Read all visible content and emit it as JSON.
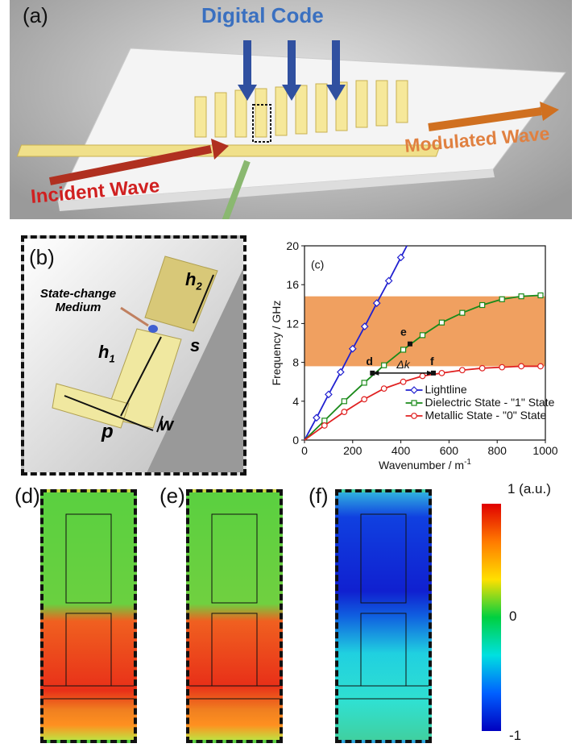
{
  "panels": {
    "a": {
      "label": "(a)",
      "digital_code": "Digital Code",
      "incident_wave": "Incident Wave",
      "modulated_wave": "Modulated Wave"
    },
    "b": {
      "label": "(b)",
      "medium": "State-change Medium",
      "h1": "h",
      "h1_sub": "1",
      "h2": "h",
      "h2_sub": "2",
      "s": "s",
      "p": "p",
      "w": "w"
    },
    "d": {
      "label": "(d)"
    },
    "e": {
      "label": "(e)"
    },
    "f": {
      "label": "(f)"
    }
  },
  "colorbar": {
    "max": "1 (a.u.)",
    "mid": "0",
    "min": "-1"
  },
  "colors": {
    "lightline": "#2020d0",
    "dielectric": "#1a8a1a",
    "metallic": "#e02020",
    "band": "#f0a060"
  },
  "chart_data": {
    "type": "line",
    "panel_label": "(c)",
    "xlabel": "Wavenumber / m",
    "xlabel_sup": "-1",
    "ylabel": "Frequency / GHz",
    "xlim": [
      0,
      1000
    ],
    "ylim": [
      0,
      20
    ],
    "xticks": [
      "0",
      "200",
      "400",
      "600",
      "800",
      "1000"
    ],
    "yticks": [
      "0",
      "4",
      "8",
      "12",
      "16",
      "20"
    ],
    "legend_position": "bottom-right",
    "band": [
      7.6,
      14.8
    ],
    "series": [
      {
        "name": "Lightline",
        "marker": "diamond",
        "x": [
          0,
          50,
          100,
          150,
          200,
          250,
          300,
          350,
          400,
          425
        ],
        "y": [
          0,
          2.3,
          4.7,
          7.0,
          9.4,
          11.7,
          14.1,
          16.4,
          18.8,
          20
        ]
      },
      {
        "name": "Dielectric State - \"1\" State",
        "marker": "square",
        "x": [
          0,
          83,
          165,
          248,
          330,
          410,
          490,
          570,
          655,
          738,
          820,
          900,
          980
        ],
        "y": [
          0,
          2.0,
          4.0,
          5.9,
          7.7,
          9.3,
          10.8,
          12.1,
          13.1,
          13.9,
          14.5,
          14.8,
          14.9
        ]
      },
      {
        "name": "Metallic State - \"0\" State",
        "marker": "circle",
        "x": [
          0,
          83,
          165,
          248,
          330,
          410,
          490,
          570,
          655,
          738,
          820,
          900,
          980
        ],
        "y": [
          0,
          1.5,
          2.9,
          4.2,
          5.3,
          6.0,
          6.6,
          6.9,
          7.2,
          7.4,
          7.5,
          7.6,
          7.6
        ]
      }
    ],
    "annotations": [
      {
        "text": "d",
        "x": 282,
        "y": 6.9
      },
      {
        "text": "e",
        "x": 438,
        "y": 9.9
      },
      {
        "text": "f",
        "x": 535,
        "y": 6.9
      },
      {
        "text": "Δk",
        "x": 410,
        "y": 6.9
      }
    ]
  }
}
